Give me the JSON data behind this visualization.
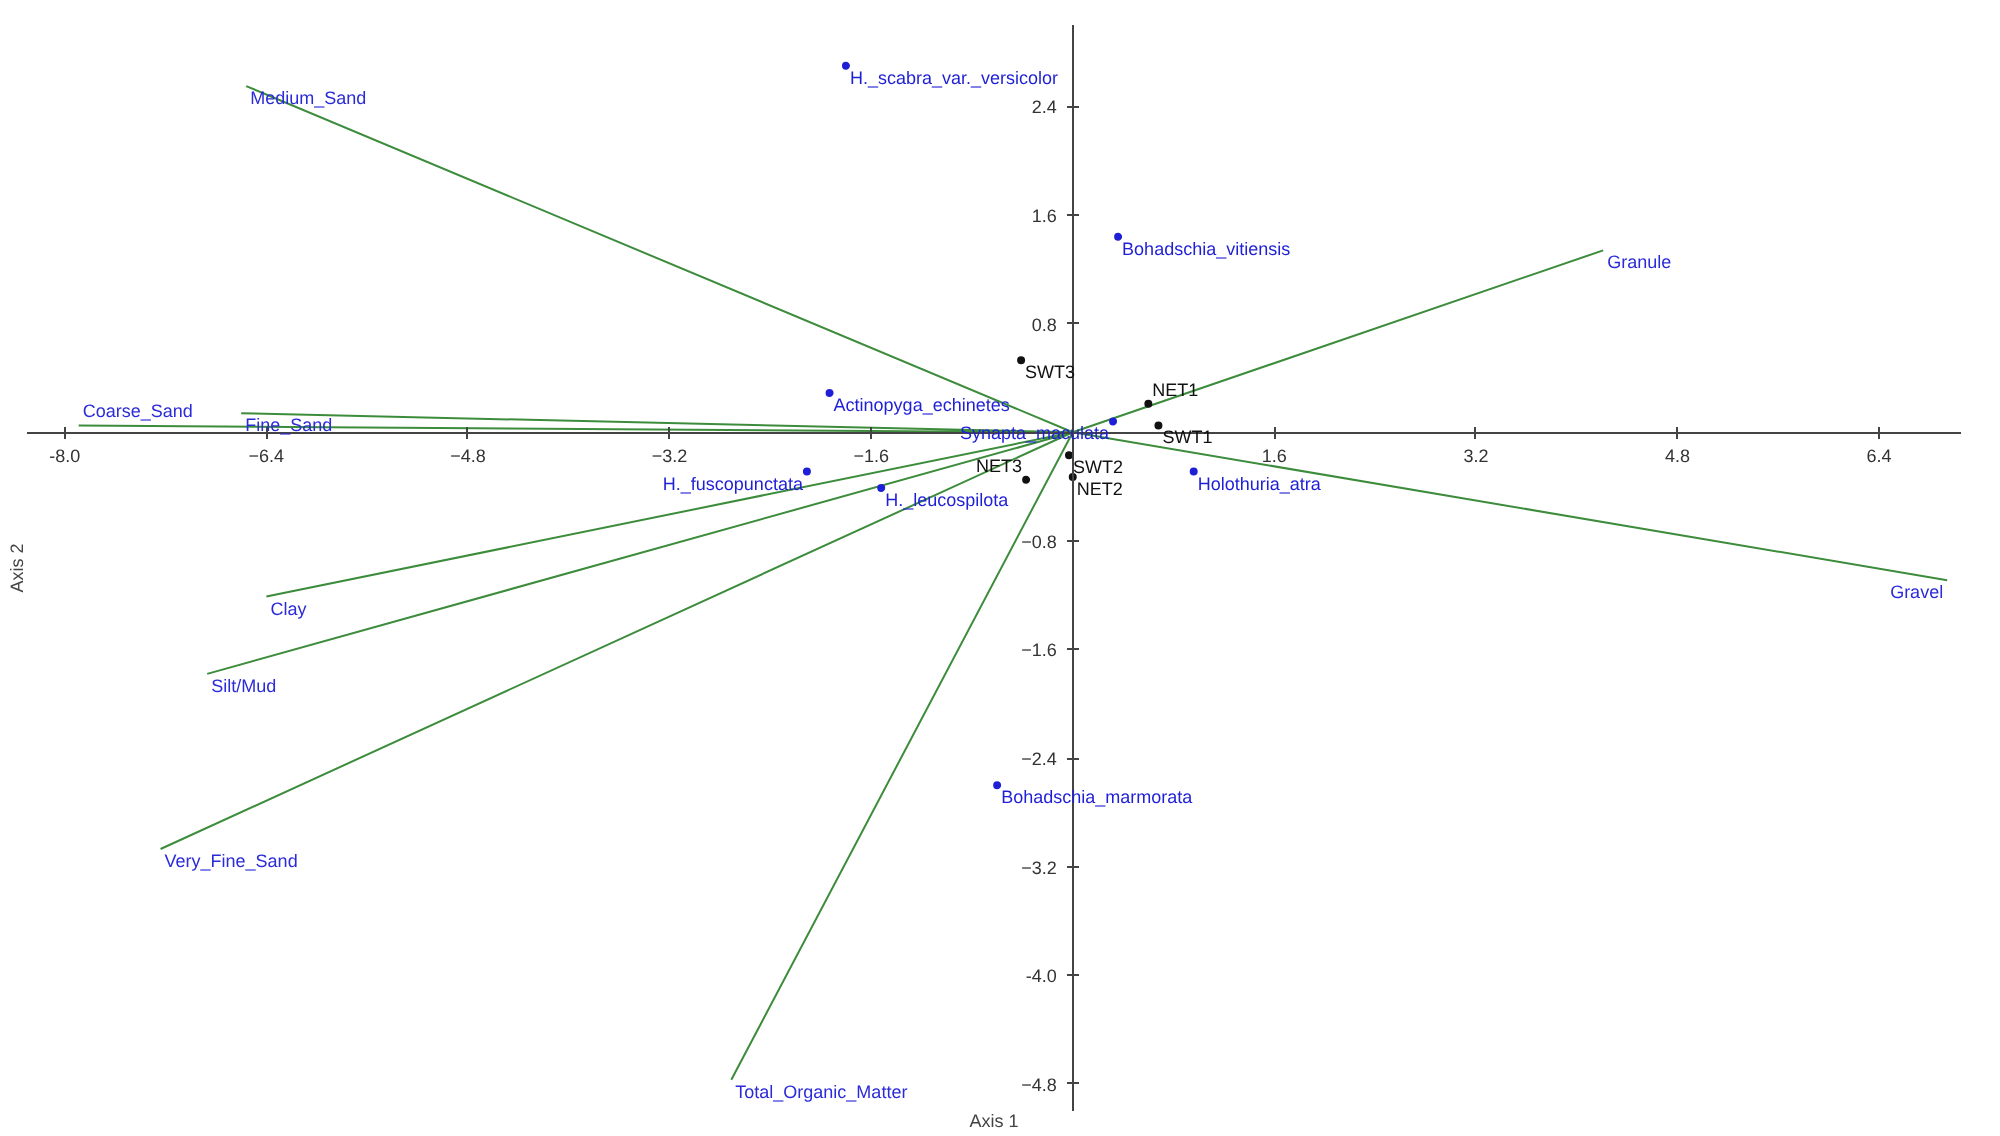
{
  "chart_data": {
    "type": "scatter",
    "xlabel": "Axis 1",
    "ylabel": "Axis 2",
    "xlim": [
      -8.3,
      7.05
    ],
    "ylim": [
      -5.0,
      3.0
    ],
    "xticks": [
      {
        "value": -8,
        "label": "-8.0"
      },
      -6.4,
      -4.8,
      -3.2,
      -1.6,
      1.6,
      3.2,
      4.8,
      6.4
    ],
    "yticks": [
      2.4,
      1.6,
      0.8,
      -0.8,
      -1.6,
      -2.4,
      -3.2,
      {
        "value": -4,
        "label": "-4.0"
      },
      -4.8
    ],
    "grid": false,
    "marker": "circle",
    "series": [
      {
        "type": "line",
        "color": "#3c8c3c",
        "marker": "none",
        "x": [
          0,
          -6.56,
          null,
          0,
          -7.89,
          null,
          0,
          -6.6,
          null,
          0,
          -6.4,
          null,
          0,
          -6.87,
          null,
          0,
          -7.24,
          null,
          0,
          -2.71,
          null,
          0,
          4.21,
          null,
          0,
          6.94
        ],
        "values": [
          0,
          2.55,
          null,
          0,
          0.05,
          null,
          0,
          0.14,
          null,
          0,
          -1.21,
          null,
          0,
          -1.78,
          null,
          0,
          -3.07,
          null,
          0,
          -4.77,
          null,
          0,
          1.34,
          null,
          0,
          -1.09
        ]
      },
      {
        "color": "#1f1fd6",
        "x": [
          -1.8,
          0.36,
          -1.93,
          -2.11,
          -1.52,
          0.32,
          0.96,
          -0.6
        ],
        "values": [
          2.7,
          1.44,
          0.29,
          -0.29,
          -0.41,
          0.08,
          -0.29,
          -2.6
        ]
      },
      {
        "color": "#111111",
        "x": [
          -0.41,
          0.6,
          0.68,
          -0.03,
          -0.37,
          0.0
        ],
        "values": [
          0.53,
          0.21,
          0.05,
          -0.17,
          -0.35,
          -0.33
        ]
      }
    ],
    "annotations": [
      {
        "text": "Medium_Sand",
        "x": -6.56,
        "y": 2.55
      },
      {
        "text": "Coarse_Sand",
        "x": -7.89,
        "y": 0.05
      },
      {
        "text": "Fine_Sand",
        "x": -6.6,
        "y": 0.14
      },
      {
        "text": "Clay",
        "x": -6.4,
        "y": -1.21
      },
      {
        "text": "Silt/Mud",
        "x": -6.87,
        "y": -1.78
      },
      {
        "text": "Very_Fine_Sand",
        "x": -7.24,
        "y": -3.07
      },
      {
        "text": "Total_Organic_Matter",
        "x": -2.71,
        "y": -4.77
      },
      {
        "text": "Granule",
        "x": 4.21,
        "y": 1.34
      },
      {
        "text": "Gravel",
        "x": 6.94,
        "y": -1.09
      },
      {
        "text": "H._scabra_var._versicolor",
        "x": -1.8,
        "y": 2.7
      },
      {
        "text": "Bohadschia_vitiensis",
        "x": 0.36,
        "y": 1.44
      },
      {
        "text": "Actinopyga_echinetes",
        "x": -1.93,
        "y": 0.29
      },
      {
        "text": "H._fuscopunctata",
        "x": -2.11,
        "y": -0.29
      },
      {
        "text": "H._leucospilota",
        "x": -1.52,
        "y": -0.41
      },
      {
        "text": "Synapta_maculata",
        "x": 0.32,
        "y": 0.08
      },
      {
        "text": "Holothuria_atra",
        "x": 0.96,
        "y": -0.29
      },
      {
        "text": "Bohadschia_marmorata",
        "x": -0.6,
        "y": -2.6
      },
      {
        "text": "SWT3",
        "x": -0.41,
        "y": 0.53
      },
      {
        "text": "NET1",
        "x": 0.6,
        "y": 0.21
      },
      {
        "text": "SWT1",
        "x": 0.68,
        "y": 0.05
      },
      {
        "text": "SWT2",
        "x": -0.03,
        "y": -0.17
      },
      {
        "text": "NET3",
        "x": -0.37,
        "y": -0.35
      },
      {
        "text": "NET2",
        "x": 0.0,
        "y": -0.33
      }
    ]
  }
}
